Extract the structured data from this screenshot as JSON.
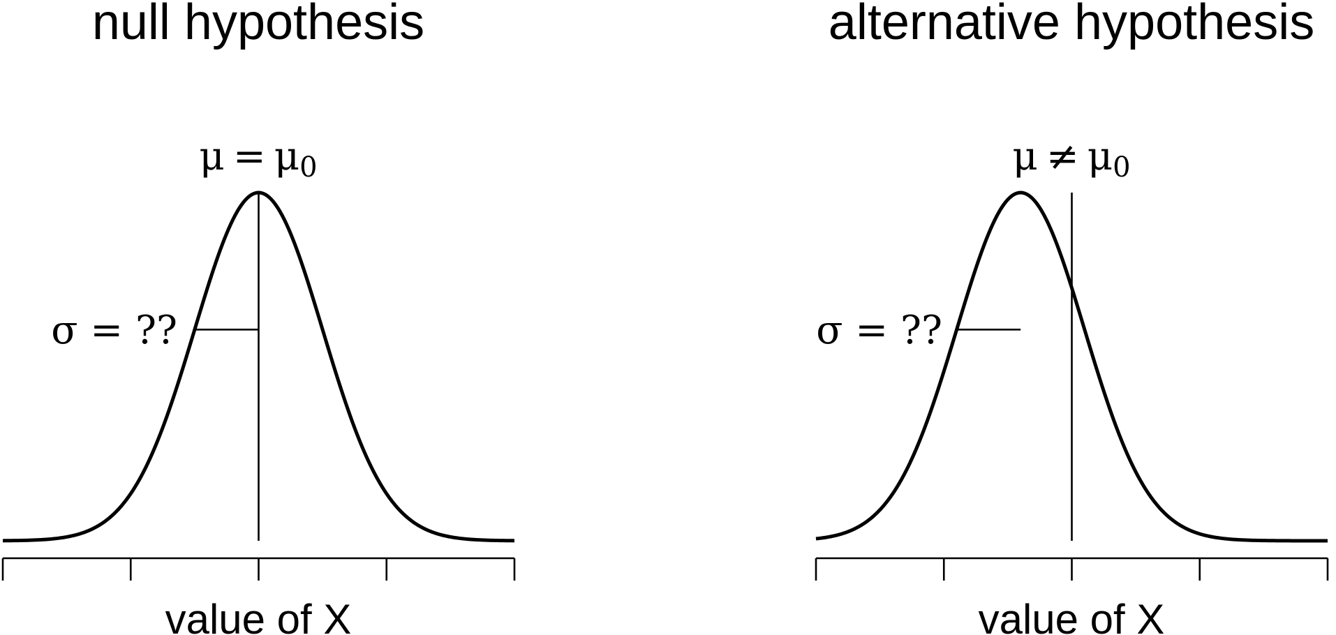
{
  "chart_data": [
    {
      "type": "line",
      "title": "null hypothesis",
      "xlabel": "value of X",
      "mean_annotation": {
        "symbol": "μ",
        "relation": "=",
        "ref_symbol": "μ",
        "ref_subscript": "0"
      },
      "sd_annotation": "σ = ??",
      "distribution": "normal",
      "mean": 0,
      "sd": 1,
      "reference_line_x": 0,
      "xlim": [
        -4,
        4
      ],
      "xticks": [
        -4,
        -2,
        0,
        2,
        4
      ],
      "tick_labels_shown": false,
      "y_axis_shown": false,
      "color": "#000000"
    },
    {
      "type": "line",
      "title": "alternative hypothesis",
      "xlabel": "value of X",
      "mean_annotation": {
        "symbol": "μ",
        "relation": "≠",
        "ref_symbol": "μ",
        "ref_subscript": "0"
      },
      "sd_annotation": "σ = ??",
      "distribution": "normal",
      "mean": -0.8,
      "sd": 1,
      "reference_line_x": 0,
      "xlim": [
        -4,
        4
      ],
      "xticks": [
        -4,
        -2,
        0,
        2,
        4
      ],
      "tick_labels_shown": false,
      "y_axis_shown": false,
      "color": "#000000"
    }
  ]
}
